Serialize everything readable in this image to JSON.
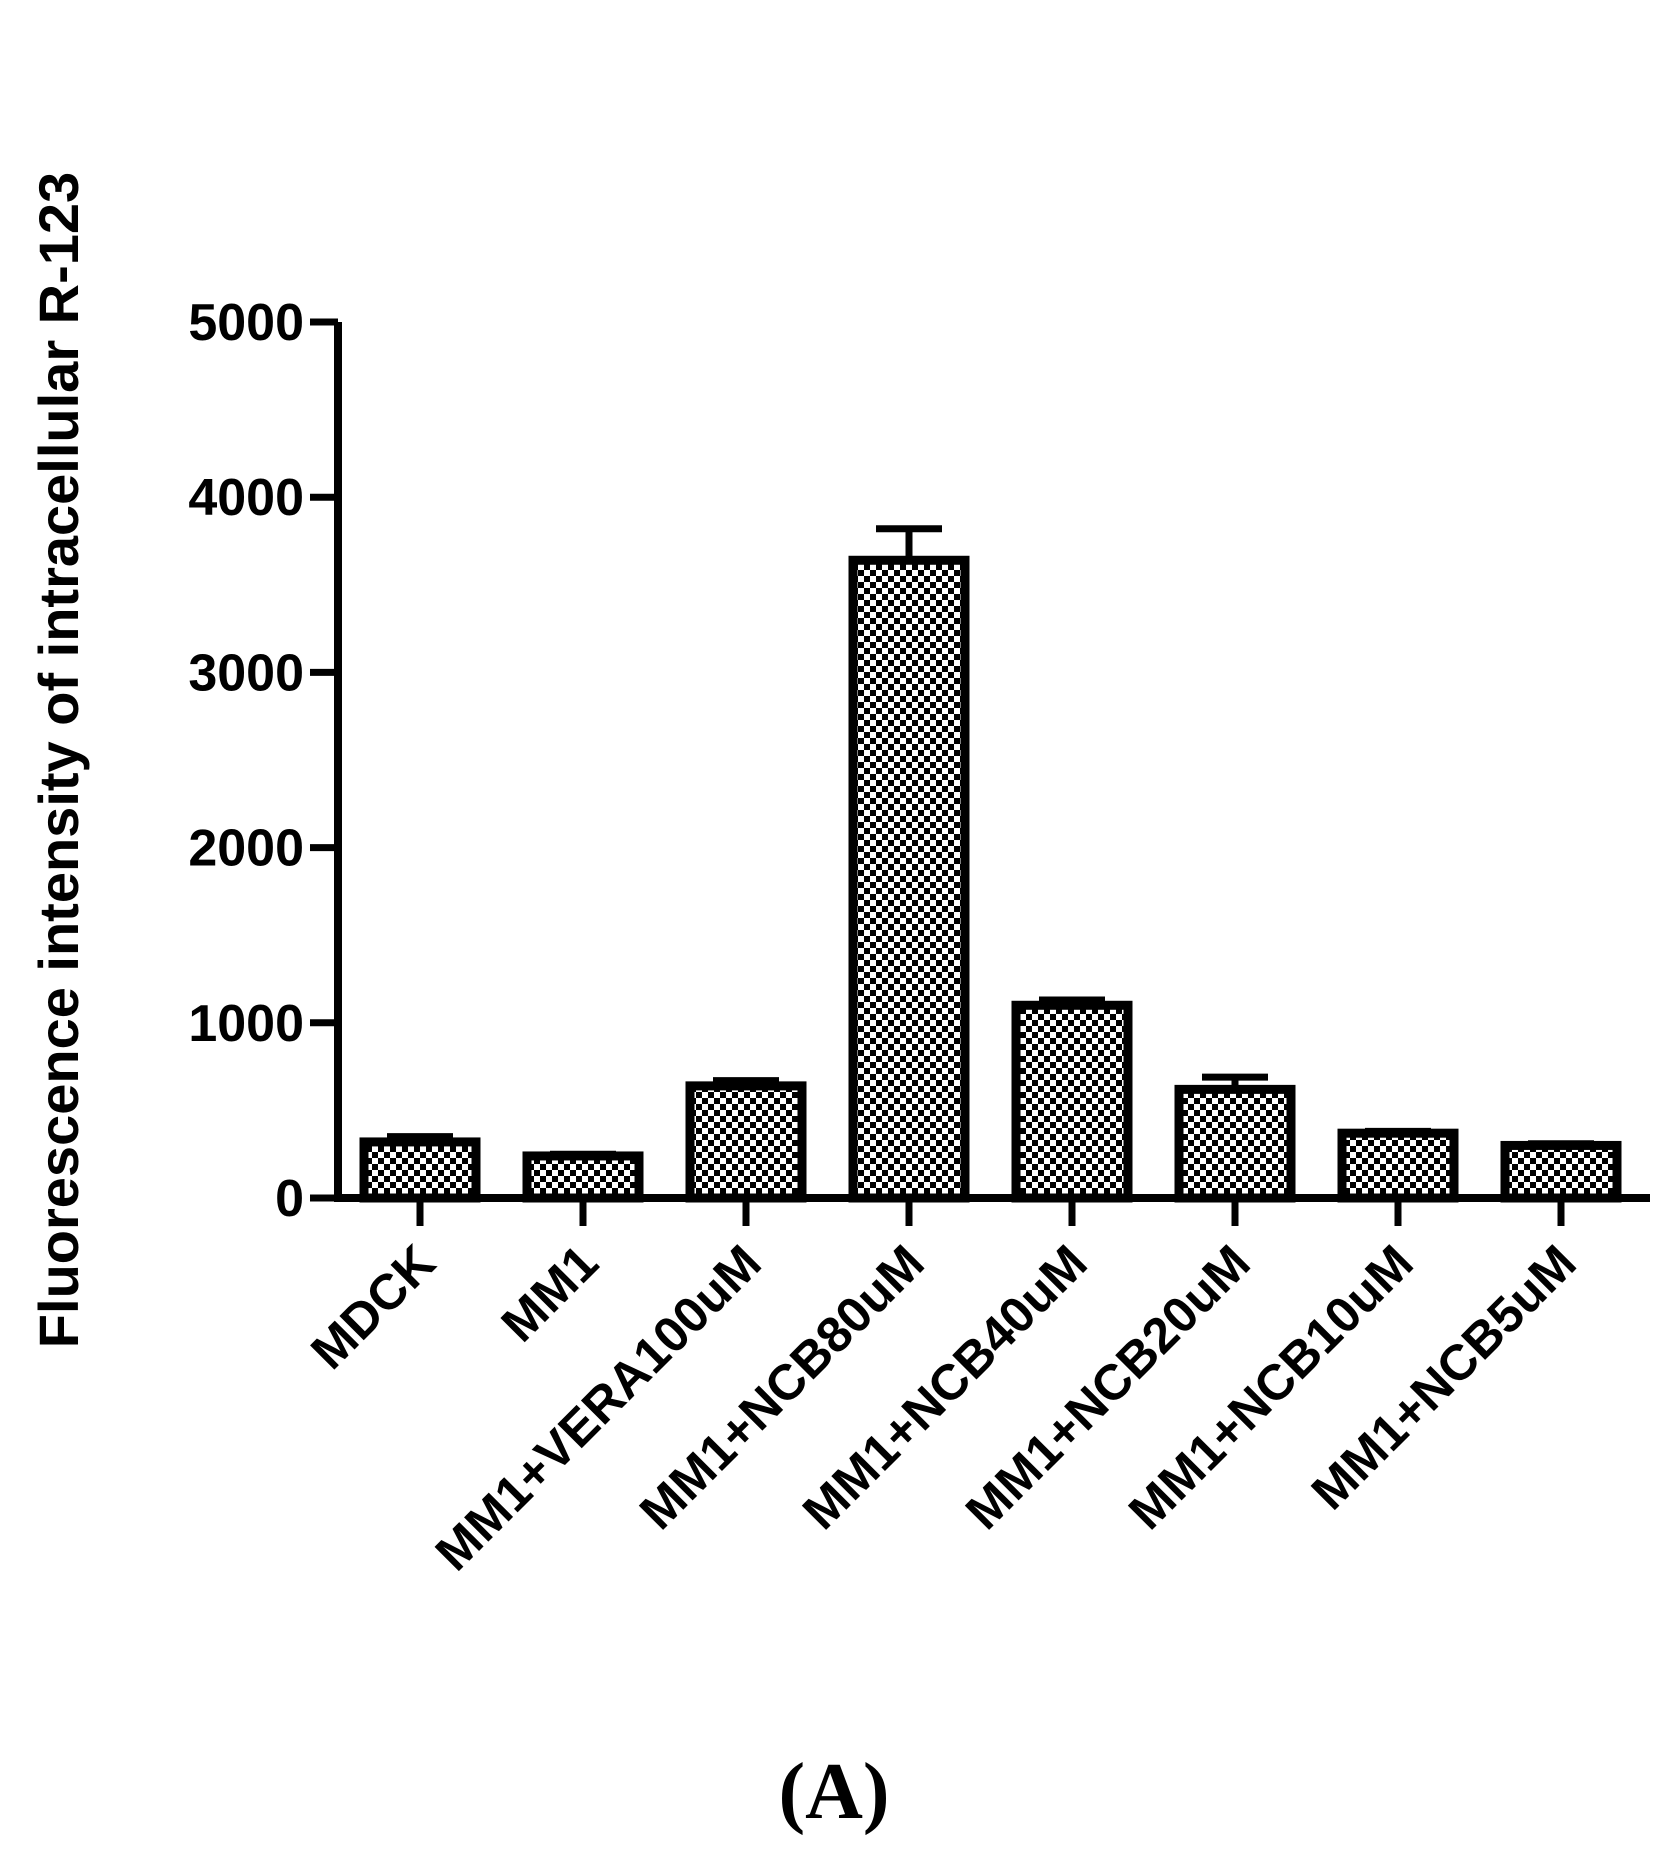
{
  "chart_data": {
    "type": "bar",
    "title": "",
    "xlabel": "",
    "ylabel": "Fluorescence intensity of intracellular R-123",
    "ylim": [
      0,
      5000
    ],
    "yticks": [
      "0",
      "1000",
      "2000",
      "3000",
      "4000",
      "5000"
    ],
    "categories": [
      "MDCK",
      "MM1",
      "MM1+VERA100uM",
      "MM1+NCB80uM",
      "MM1+NCB40uM",
      "MM1+NCB20uM",
      "MM1+NCB10uM",
      "MM1+NCB5uM"
    ],
    "values": [
      320,
      240,
      640,
      3640,
      1100,
      620,
      370,
      300
    ],
    "error": [
      30,
      10,
      30,
      180,
      30,
      70,
      10,
      10
    ],
    "bar_fill": "checkered",
    "grid": false,
    "legend": false
  },
  "panel_label": "(A)",
  "colors": {
    "bar_dark": "#000000",
    "bar_light": "#ffffff"
  }
}
